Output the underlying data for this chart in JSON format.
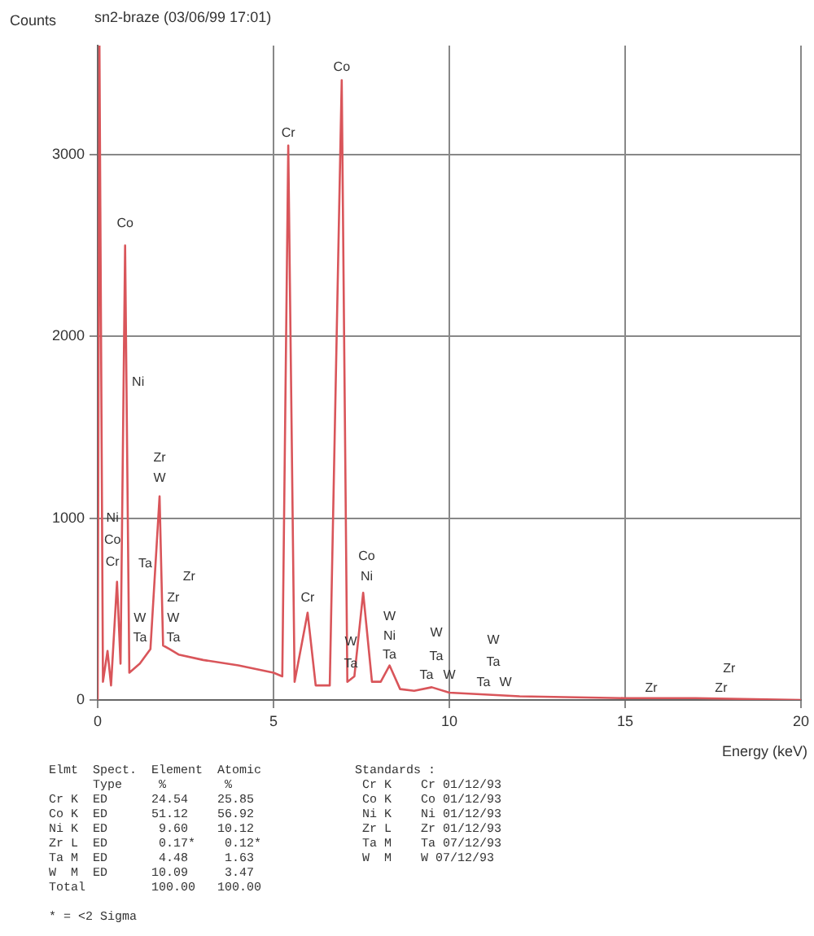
{
  "chart_data": {
    "type": "line",
    "title": "sn2-braze (03/06/99 17:01)",
    "xlabel": "Energy (keV)",
    "ylabel": "Counts",
    "x": [
      0,
      0.05,
      0.15,
      0.28,
      0.38,
      0.55,
      0.65,
      0.78,
      0.9,
      1.2,
      1.5,
      1.76,
      1.86,
      2.04,
      2.3,
      3,
      4,
      5,
      5.25,
      5.42,
      5.6,
      5.97,
      6.2,
      6.6,
      6.94,
      7.1,
      7.3,
      7.55,
      7.8,
      8.05,
      8.3,
      8.6,
      9,
      9.5,
      10,
      11,
      12,
      15,
      17,
      20
    ],
    "series": [
      {
        "color": "#d9555a",
        "values": [
          0,
          3600,
          100,
          270,
          80,
          650,
          200,
          2500,
          150,
          200,
          280,
          1120,
          300,
          280,
          250,
          220,
          190,
          150,
          130,
          3050,
          100,
          480,
          80,
          80,
          3410,
          100,
          130,
          590,
          100,
          100,
          190,
          60,
          50,
          70,
          40,
          30,
          20,
          10,
          10,
          0
        ]
      }
    ],
    "xlim": [
      0,
      20
    ],
    "xticks": [
      0,
      5,
      10,
      15,
      20
    ],
    "ylim": [
      0,
      3600
    ],
    "yticks": [
      0,
      1000,
      2000,
      3000
    ],
    "grid": true,
    "line_style": "solid",
    "marker": "none",
    "annotations": [
      "Co",
      "Ni",
      "Ni",
      "Co",
      "Cr",
      "W",
      "Ta",
      "Zr",
      "W",
      "Ta",
      "Zr",
      "Zr",
      "W",
      "Ta",
      "Cr",
      "Cr",
      "Co",
      "Co",
      "Ni",
      "W",
      "Ta",
      "W",
      "Ni",
      "Ta",
      "W",
      "Ta",
      "Ta",
      "W",
      "W",
      "Ta",
      "Ta",
      "W",
      "Zr",
      "Zr",
      "Zr",
      "Elmt  Spect.  Element  Atomic\n      Type     %        %\nCr K  ED      24.54    25.85\nCo K  ED      51.12    56.92\nNi K  ED       9.60    10.12\nZr L  ED       0.17*    0.12*\nTa M  ED       4.48     1.63\nW  M  ED      10.09     3.47\nTotal         100.00   100.00",
      "Standards :\n Cr K    Cr 01/12/93\n Co K    Co 01/12/93\n Ni K    Ni 01/12/93\n Zr L    Zr 01/12/93\n Ta M    Ta 07/12/93\n W  M    W 07/12/93",
      "* = <2 Sigma"
    ]
  }
}
